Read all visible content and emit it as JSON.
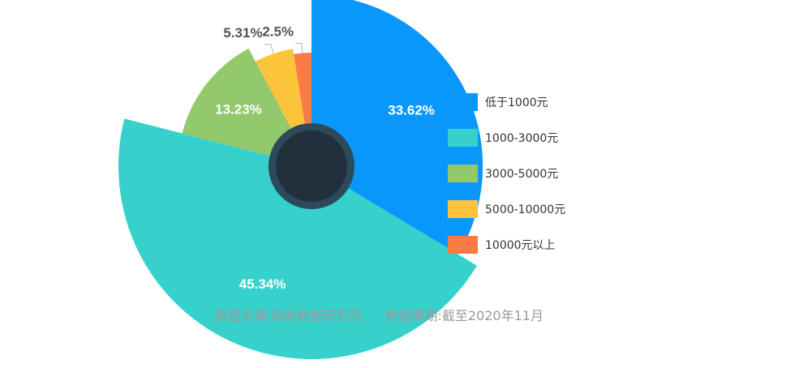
{
  "chart_data": {
    "type": "pie",
    "style": "rose-donut",
    "slices": [
      {
        "label": "低于1000元",
        "value": 33.62,
        "value_label": "33.62%",
        "color": "#0a97fb",
        "label_inside": true
      },
      {
        "label": "1000-3000元",
        "value": 45.34,
        "value_label": "45.34%",
        "color": "#37d1cb",
        "label_inside": true
      },
      {
        "label": "3000-5000元",
        "value": 13.23,
        "value_label": "13.23%",
        "color": "#92c96c",
        "label_inside": true
      },
      {
        "label": "5000-10000元",
        "value": 5.31,
        "value_label": "5.31%",
        "color": "#fbc43a",
        "label_inside": false
      },
      {
        "label": "10000元以上",
        "value": 2.5,
        "value_label": "2.5%",
        "color": "#fb7b45",
        "label_inside": false
      }
    ],
    "legend_position": "right",
    "center_color": "#22303e",
    "center_ring_color": "#2c4a5a"
  },
  "footer": {
    "source": "数据来源:脉脉数据研究院",
    "period": "数据周期:截至2020年11月"
  }
}
